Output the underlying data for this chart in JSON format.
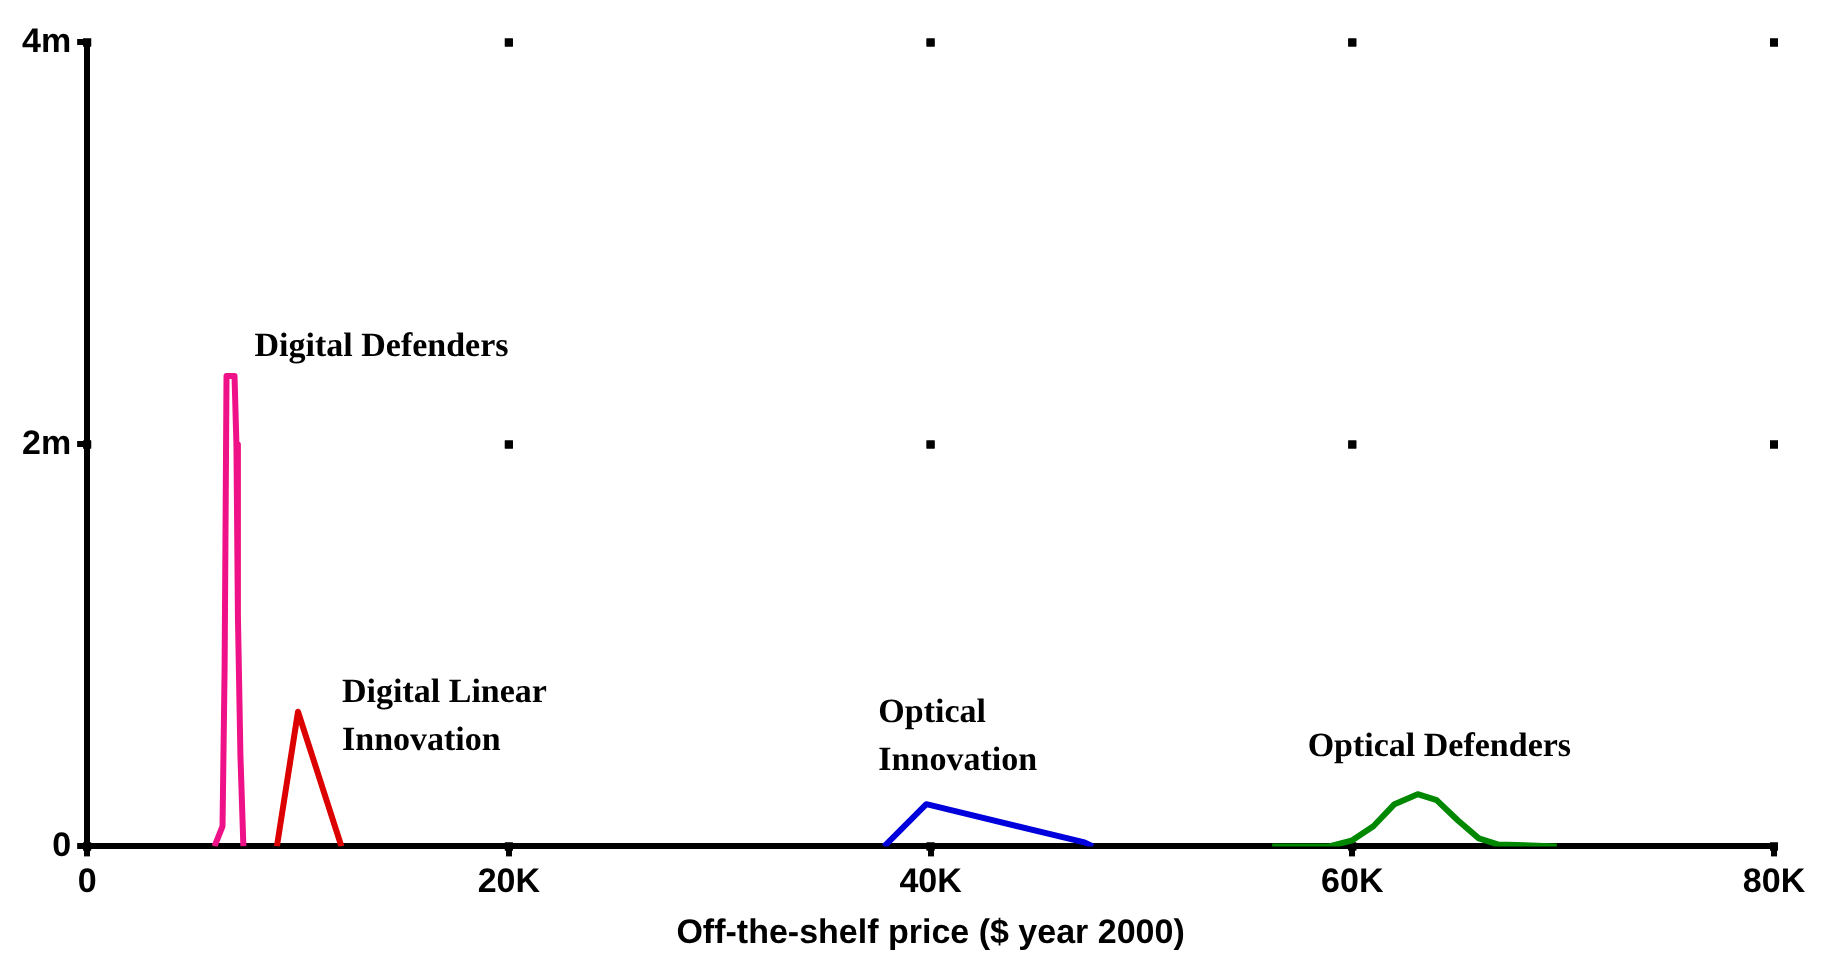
{
  "chart_data": {
    "type": "line",
    "xlabel": "Off-the-shelf price ($ year 2000)",
    "xlim": [
      0,
      80000
    ],
    "xticks": [
      0,
      {
        "value": 20000,
        "label": "20K"
      },
      {
        "value": 40000,
        "label": "40K"
      },
      {
        "value": 60000,
        "label": "60K"
      },
      {
        "value": 80000,
        "label": "80K"
      }
    ],
    "ylim": [
      0,
      4
    ],
    "yticks": [
      0,
      {
        "value": 2,
        "label": "2m"
      },
      {
        "value": 4,
        "label": "4m"
      }
    ],
    "grid": true,
    "legend": false,
    "marker": "none",
    "series": [
      {
        "name": "Digital Defenders",
        "color": "#ee1188",
        "x": [
          6040,
          6420,
          6520,
          6610,
          6990,
          7080,
          7150,
          7270,
          7410
        ],
        "values": [
          0,
          0.1,
          0.89,
          2.34,
          2.34,
          2,
          1.15,
          0.45,
          0
        ]
      },
      {
        "name": "Digital Linear Innovation",
        "color": "#dd0000",
        "x": [
          9000,
          10000,
          12060
        ],
        "values": [
          0,
          0.67,
          0
        ]
      },
      {
        "name": "Optical Innovation",
        "color": "#0000dd",
        "x": [
          37800,
          39800,
          47300,
          47700
        ],
        "values": [
          0,
          0.21,
          0.02,
          0
        ]
      },
      {
        "name": "Optical Defenders",
        "color": "#008800",
        "x": [
          56200,
          58900,
          60000,
          61000,
          62000,
          63100,
          64000,
          65000,
          66000,
          66900,
          69700
        ],
        "values": [
          0,
          0,
          0.03,
          0.1,
          0.21,
          0.26,
          0.23,
          0.13,
          0.04,
          0.01,
          0
        ]
      }
    ]
  }
}
